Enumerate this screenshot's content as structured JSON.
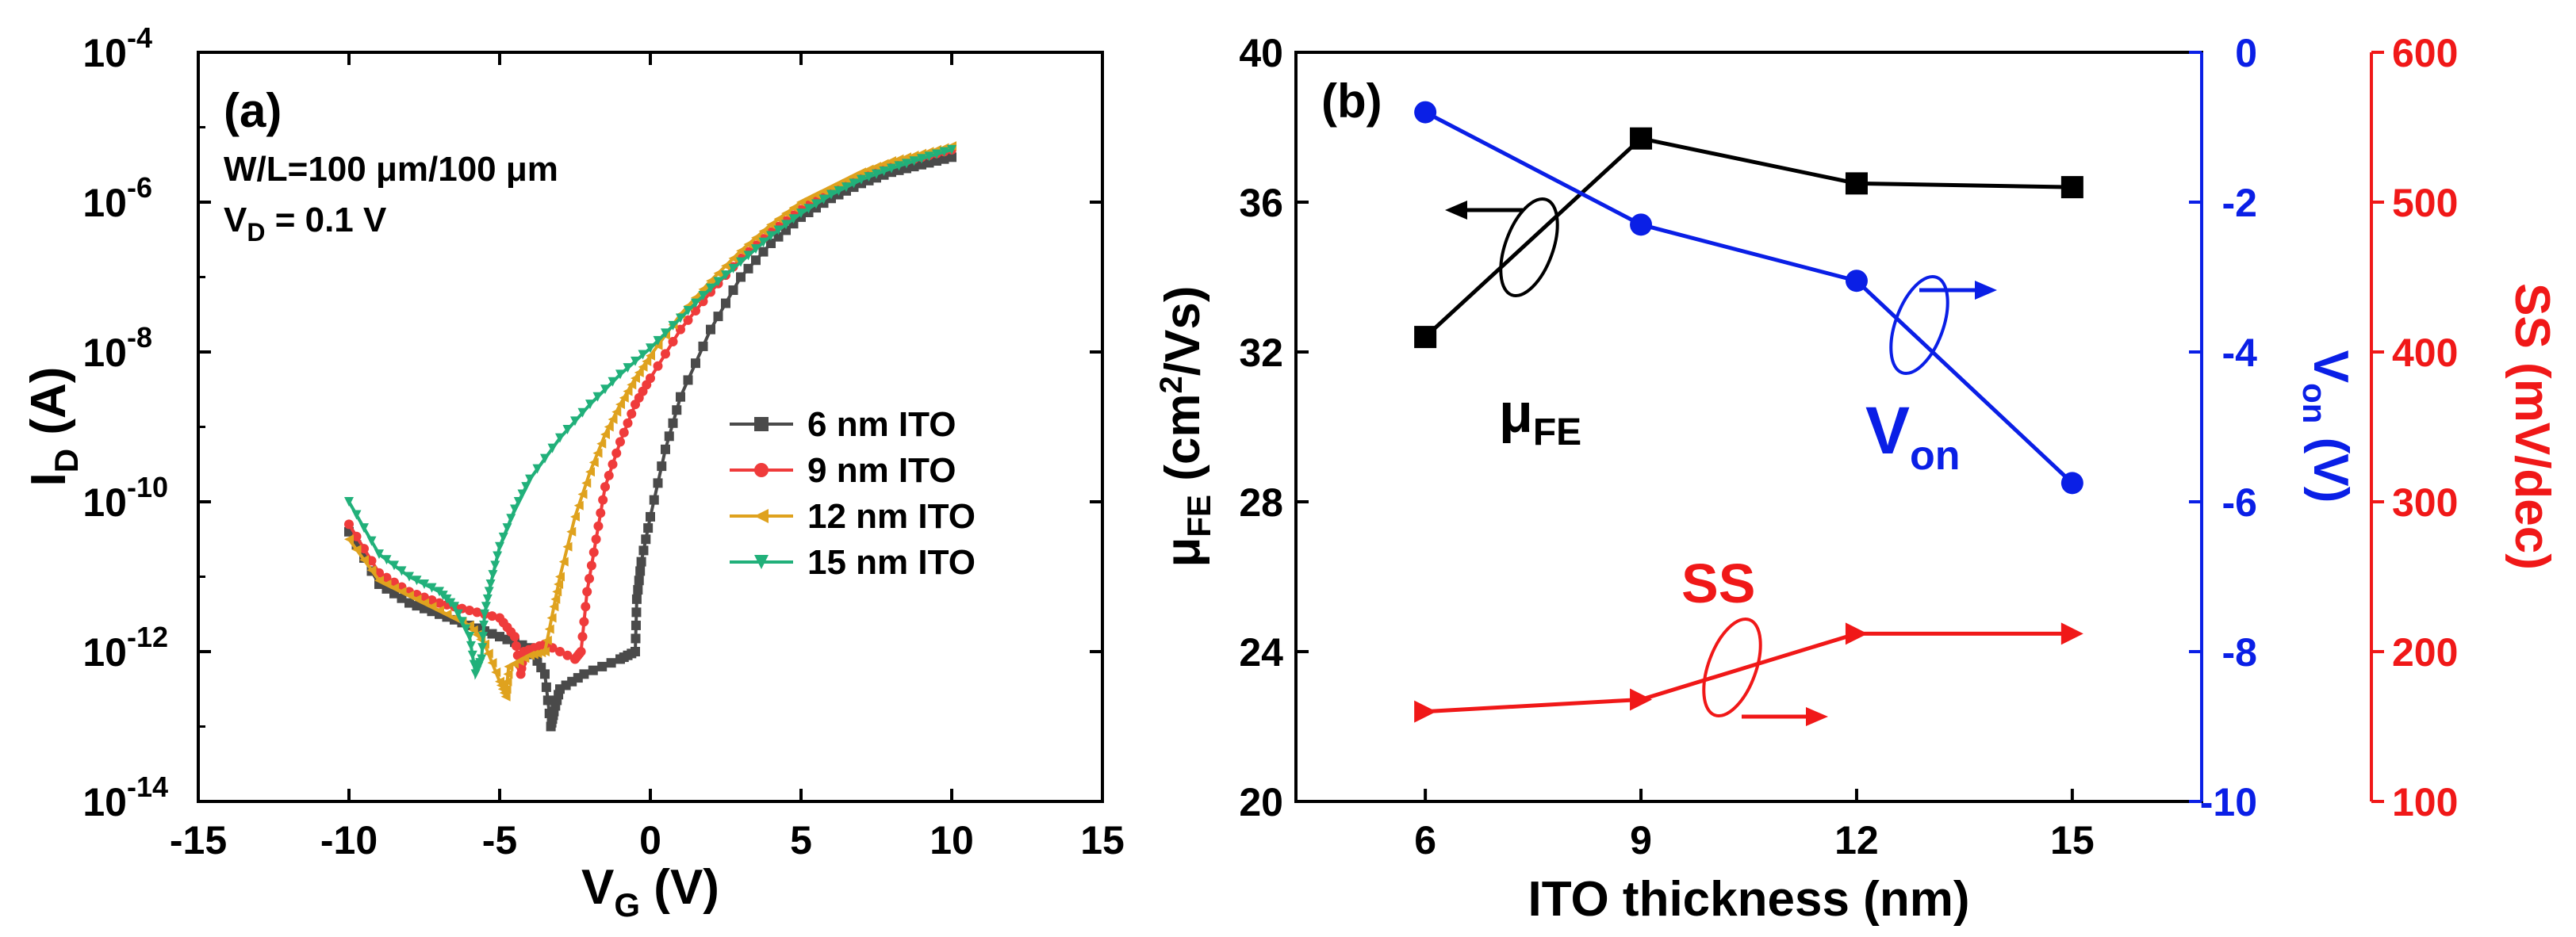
{
  "chart_data": [
    {
      "id": "a",
      "type": "line",
      "panel_label": "(a)",
      "title": "",
      "xlabel": "V",
      "xlabel_sub": "G",
      "xlabel_unit": " (V)",
      "ylabel": "I",
      "ylabel_sub": "D",
      "ylabel_unit": " (A)",
      "xlim": [
        -15,
        15
      ],
      "ylim_log10": [
        -14,
        -4
      ],
      "xscale": "linear",
      "yscale": "log",
      "x_ticks": [
        -15,
        -10,
        -5,
        0,
        5,
        10,
        15
      ],
      "y_tick_exponents": [
        -14,
        -12,
        -10,
        -8,
        -6,
        -4
      ],
      "y_tick_base": "10",
      "annotations": {
        "wl": "W/L=100 μm/100 μm",
        "vd_prefix": "V",
        "vd_sub": "D",
        "vd_suffix": " = 0.1 V"
      },
      "legend_position": "center-right",
      "series": [
        {
          "name": "6 nm ITO",
          "color": "#4a4a4a",
          "marker": "square",
          "points": [
            [
              -10,
              -10.4
            ],
            [
              -9,
              -11.1
            ],
            [
              -8,
              -11.35
            ],
            [
              -7,
              -11.5
            ],
            [
              -6,
              -11.65
            ],
            [
              -5,
              -11.8
            ],
            [
              -4,
              -11.95
            ],
            [
              -3.5,
              -12.3
            ],
            [
              -3.3,
              -13.0
            ],
            [
              -3.2,
              -12.8
            ],
            [
              -3,
              -12.5
            ],
            [
              -2.2,
              -12.3
            ],
            [
              -1,
              -12.1
            ],
            [
              -0.5,
              -12.0
            ],
            [
              -0.45,
              -11.3
            ],
            [
              -0.3,
              -10.8
            ],
            [
              0,
              -10.2
            ],
            [
              0.5,
              -9.3
            ],
            [
              1,
              -8.6
            ],
            [
              2,
              -7.7
            ],
            [
              3,
              -7.0
            ],
            [
              4,
              -6.55
            ],
            [
              5,
              -6.2
            ],
            [
              6,
              -5.95
            ],
            [
              7,
              -5.75
            ],
            [
              8,
              -5.6
            ],
            [
              9,
              -5.5
            ],
            [
              10,
              -5.4
            ]
          ]
        },
        {
          "name": "9 nm ITO",
          "color": "#ef3b3b",
          "marker": "circle",
          "points": [
            [
              -10,
              -10.3
            ],
            [
              -9,
              -10.95
            ],
            [
              -8,
              -11.2
            ],
            [
              -7,
              -11.35
            ],
            [
              -6,
              -11.45
            ],
            [
              -5,
              -11.55
            ],
            [
              -4.5,
              -11.8
            ],
            [
              -4.3,
              -12.3
            ],
            [
              -4.2,
              -12.0
            ],
            [
              -3.5,
              -11.9
            ],
            [
              -2.5,
              -12.1
            ],
            [
              -2.3,
              -12.0
            ],
            [
              -2.1,
              -11.2
            ],
            [
              -1.8,
              -10.5
            ],
            [
              -1.5,
              -9.8
            ],
            [
              -1,
              -9.2
            ],
            [
              -0.5,
              -8.7
            ],
            [
              0,
              -8.35
            ],
            [
              1,
              -7.7
            ],
            [
              2,
              -7.2
            ],
            [
              3,
              -6.75
            ],
            [
              4,
              -6.4
            ],
            [
              5,
              -6.1
            ],
            [
              6,
              -5.85
            ],
            [
              7,
              -5.65
            ],
            [
              8,
              -5.5
            ],
            [
              9,
              -5.4
            ],
            [
              10,
              -5.3
            ]
          ]
        },
        {
          "name": "12 nm ITO",
          "color": "#dfa21e",
          "marker": "triangle-left",
          "points": [
            [
              -10,
              -10.5
            ],
            [
              -9,
              -11.05
            ],
            [
              -8,
              -11.25
            ],
            [
              -7,
              -11.45
            ],
            [
              -6,
              -11.65
            ],
            [
              -5.5,
              -11.9
            ],
            [
              -5,
              -12.4
            ],
            [
              -4.8,
              -12.6
            ],
            [
              -4.7,
              -12.2
            ],
            [
              -4,
              -12.05
            ],
            [
              -3.5,
              -12.0
            ],
            [
              -3.2,
              -11.4
            ],
            [
              -3,
              -11.0
            ],
            [
              -2.5,
              -10.2
            ],
            [
              -2,
              -9.6
            ],
            [
              -1.5,
              -9.1
            ],
            [
              -1,
              -8.7
            ],
            [
              -0.5,
              -8.35
            ],
            [
              0,
              -8.05
            ],
            [
              1,
              -7.5
            ],
            [
              2,
              -7.05
            ],
            [
              3,
              -6.65
            ],
            [
              4,
              -6.3
            ],
            [
              5,
              -6.0
            ],
            [
              6,
              -5.8
            ],
            [
              7,
              -5.6
            ],
            [
              8,
              -5.45
            ],
            [
              9,
              -5.35
            ],
            [
              10,
              -5.25
            ]
          ]
        },
        {
          "name": "15 nm ITO",
          "color": "#21b07a",
          "marker": "triangle-down",
          "points": [
            [
              -10,
              -10.0
            ],
            [
              -9,
              -10.7
            ],
            [
              -8,
              -11.0
            ],
            [
              -7,
              -11.2
            ],
            [
              -6.5,
              -11.4
            ],
            [
              -6,
              -11.8
            ],
            [
              -5.8,
              -12.3
            ],
            [
              -5.6,
              -12.1
            ],
            [
              -5.5,
              -11.5
            ],
            [
              -5.3,
              -11.1
            ],
            [
              -5,
              -10.6
            ],
            [
              -4.5,
              -10.1
            ],
            [
              -4,
              -9.7
            ],
            [
              -3,
              -9.15
            ],
            [
              -2,
              -8.7
            ],
            [
              -1,
              -8.3
            ],
            [
              0,
              -7.95
            ],
            [
              1,
              -7.55
            ],
            [
              2,
              -7.15
            ],
            [
              3,
              -6.8
            ],
            [
              4,
              -6.45
            ],
            [
              5,
              -6.15
            ],
            [
              6,
              -5.9
            ],
            [
              7,
              -5.7
            ],
            [
              8,
              -5.55
            ],
            [
              9,
              -5.42
            ],
            [
              10,
              -5.3
            ]
          ]
        }
      ]
    },
    {
      "id": "b",
      "type": "line",
      "panel_label": "(b)",
      "title": "",
      "xlabel": "ITO thickness (nm)",
      "x_ticks": [
        6,
        9,
        12,
        15
      ],
      "xlim": [
        4.2,
        16.8
      ],
      "categories": [
        6,
        9,
        12,
        15
      ],
      "series": [
        {
          "name": "μFE",
          "axis": "left",
          "color": "#000000",
          "marker": "square",
          "values": [
            32.4,
            37.7,
            36.5,
            36.4
          ]
        },
        {
          "name": "Von",
          "axis": "right1",
          "color": "#0a1fe6",
          "marker": "circle",
          "values": [
            -0.8,
            -2.3,
            -3.05,
            -5.75
          ]
        },
        {
          "name": "SS",
          "axis": "right2",
          "color": "#f01818",
          "marker": "triangle-right",
          "values": [
            160,
            168,
            212,
            212
          ]
        }
      ],
      "axes": {
        "left": {
          "label_main": "μ",
          "label_sub": "FE",
          "label_mid": " (cm",
          "label_sup": "2",
          "label_end": "/Vs)",
          "ylim": [
            20,
            40
          ],
          "ticks": [
            20,
            24,
            28,
            32,
            36,
            40
          ]
        },
        "right1": {
          "label_main": "V",
          "label_sub": "on",
          "label_end": " (V)",
          "ylim": [
            -10,
            0
          ],
          "ticks": [
            -10,
            -8,
            -6,
            -4,
            -2,
            0
          ]
        },
        "right2": {
          "label": "SS (mV/dec)",
          "ylim": [
            100,
            600
          ],
          "ticks": [
            100,
            200,
            300,
            400,
            500,
            600
          ]
        }
      },
      "annotations": {
        "mu_main": "μ",
        "mu_sub": "FE",
        "von_main": "V",
        "von_sub": "on",
        "ss": "SS"
      }
    }
  ],
  "colors": {
    "axis": "#000000",
    "von_axis": "#0a1fe6",
    "ss_axis": "#f01818"
  }
}
